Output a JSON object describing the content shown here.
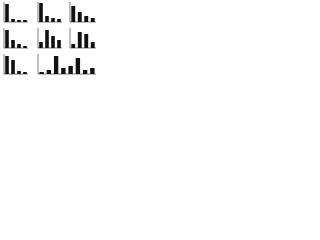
{
  "chart_data": [
    {
      "type": "bar",
      "categories": [
        null,
        null,
        null,
        null
      ],
      "series": [
        {
          "color": "#111111",
          "values": [
            0.9,
            0.15,
            0.1,
            0.1
          ]
        }
      ],
      "ylim": [
        0,
        1
      ]
    },
    {
      "type": "bar",
      "categories": [
        null,
        null,
        null,
        null
      ],
      "series": [
        {
          "color": "#111111",
          "values": [
            0.95,
            0.3,
            0.2,
            0.15
          ]
        }
      ],
      "ylim": [
        0,
        1
      ]
    },
    {
      "type": "bar",
      "categories": [
        null,
        null,
        null,
        null
      ],
      "series": [
        {
          "color": "#111111",
          "values": [
            0.8,
            0.5,
            0.3,
            0.2
          ]
        }
      ],
      "ylim": [
        0,
        1
      ]
    },
    {
      "type": "bar",
      "categories": [
        null,
        null,
        null,
        null
      ],
      "series": [
        {
          "color": "#111111",
          "values": [
            0.9,
            0.4,
            0.2,
            0.1
          ]
        }
      ],
      "ylim": [
        0,
        1
      ]
    },
    {
      "type": "bar",
      "categories": [
        null,
        null,
        null,
        null
      ],
      "series": [
        {
          "color": "#111111",
          "values": [
            0.3,
            0.9,
            0.6,
            0.4
          ]
        }
      ],
      "ylim": [
        0,
        1
      ]
    },
    {
      "type": "bar",
      "categories": [
        null,
        null,
        null,
        null
      ],
      "series": [
        {
          "color": "#111111",
          "values": [
            0.2,
            0.8,
            0.7,
            0.3
          ]
        }
      ],
      "ylim": [
        0,
        1
      ]
    },
    {
      "type": "bar",
      "categories": [
        null,
        null,
        null,
        null
      ],
      "series": [
        {
          "color": "#111111",
          "values": [
            0.9,
            0.7,
            0.15,
            0.1
          ]
        }
      ],
      "ylim": [
        0,
        1
      ]
    },
    {
      "type": "bar",
      "categories": [
        null,
        null,
        null,
        null,
        null,
        null,
        null,
        null
      ],
      "series": [
        {
          "color": "#111111",
          "values": [
            0.1,
            0.2,
            0.9,
            0.3,
            0.4,
            0.8,
            0.2,
            0.3
          ]
        }
      ],
      "ylim": [
        0,
        1
      ]
    }
  ]
}
